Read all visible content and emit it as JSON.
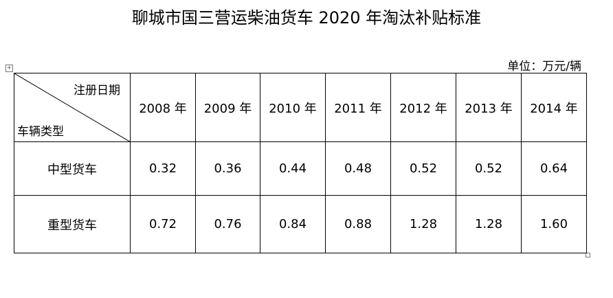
{
  "title": "聊城市国三营运柴油货车 2020 年淘汰补贴标准",
  "unit": "单位：万元/辆",
  "table": {
    "corner": {
      "top": "注册日期",
      "bottom": "车辆类型"
    },
    "columns": [
      "2008 年",
      "2009 年",
      "2010 年",
      "2011 年",
      "2012 年",
      "2013 年",
      "2014 年"
    ],
    "rows": [
      {
        "label": "中型货车",
        "values": [
          "0.32",
          "0.36",
          "0.44",
          "0.48",
          "0.52",
          "0.52",
          "0.64"
        ]
      },
      {
        "label": "重型货车",
        "values": [
          "0.72",
          "0.76",
          "0.84",
          "0.88",
          "1.28",
          "1.28",
          "1.60"
        ]
      }
    ]
  }
}
